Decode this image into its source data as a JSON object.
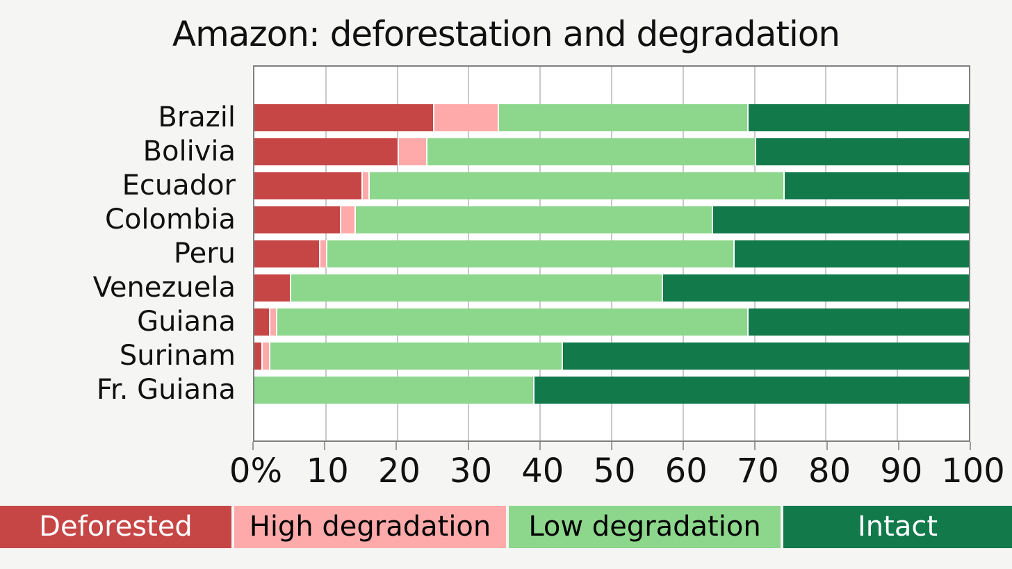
{
  "page": {
    "title": "Amazon: deforestation and degradation"
  },
  "colors": {
    "page_bg": "#f5f5f4",
    "plot_bg": "#ffffff",
    "plot_border": "#7f7f7f",
    "gridline": "#c9c9c9",
    "deforested": "#c64545",
    "high_degradation": "#ffaaaa",
    "low_degradation": "#8cd78c",
    "intact": "#11794a"
  },
  "chart_data": {
    "type": "bar",
    "orientation": "horizontal",
    "stacked": true,
    "unit": "%",
    "title": "Amazon: deforestation and degradation",
    "categories": [
      "Brazil",
      "Bolivia",
      "Ecuador",
      "Colombia",
      "Peru",
      "Venezuela",
      "Guiana",
      "Surinam",
      "Fr. Guiana"
    ],
    "series": [
      {
        "name": "Deforested",
        "color": "#c64545",
        "text_color": "#ffffff",
        "values": [
          25,
          20,
          15,
          12,
          9,
          5,
          2,
          1,
          0
        ]
      },
      {
        "name": "High degradation",
        "color": "#ffaaaa",
        "text_color": "#000000",
        "values": [
          9,
          4,
          1,
          2,
          1,
          0,
          1,
          1,
          0
        ]
      },
      {
        "name": "Low degradation",
        "color": "#8cd78c",
        "text_color": "#000000",
        "values": [
          35,
          46,
          58,
          50,
          57,
          52,
          66,
          41,
          39
        ]
      },
      {
        "name": "Intact",
        "color": "#11794a",
        "text_color": "#ffffff",
        "values": [
          31,
          30,
          26,
          36,
          33,
          43,
          31,
          57,
          61
        ]
      }
    ],
    "xlim": [
      0,
      100
    ],
    "x_tick_labels": [
      "0%",
      "10",
      "20",
      "30",
      "40",
      "50",
      "60",
      "70",
      "80",
      "90",
      "100"
    ],
    "grid": true,
    "legend_position": "bottom"
  }
}
